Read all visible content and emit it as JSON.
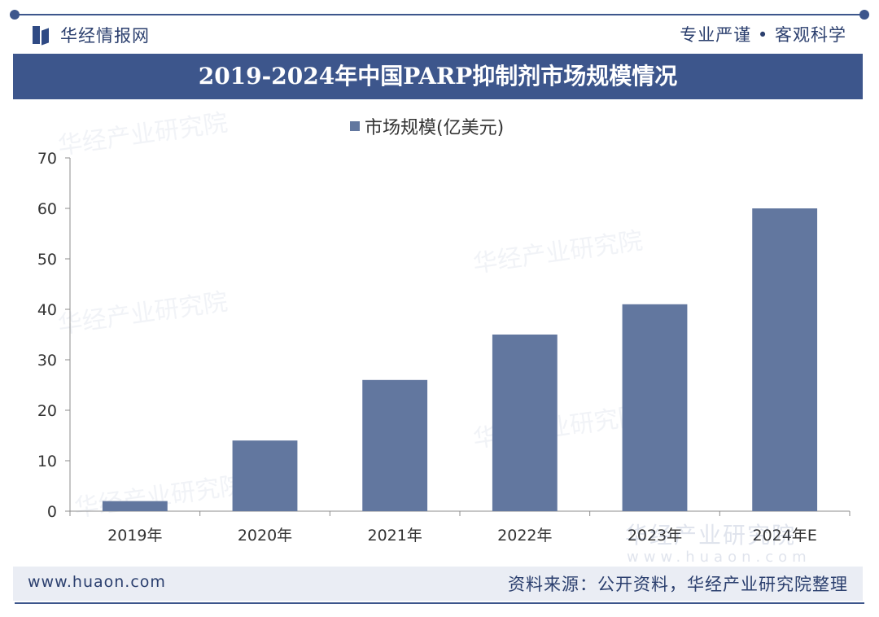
{
  "header": {
    "brand": "华经情报网",
    "slogan": "专业严谨 • 客观科学"
  },
  "watermark": {
    "text": "华经产业研究院",
    "url": "www.huaon.com"
  },
  "footer": {
    "url": "www.huaon.com",
    "source": "资料来源：公开资料，华经产业研究院整理"
  },
  "colors": {
    "accent": "#3d568c",
    "bar": "#62779f"
  },
  "chart_data": {
    "type": "bar",
    "title": "2019-2024年中国PARP抑制剂市场规模情况",
    "categories": [
      "2019年",
      "2020年",
      "2021年",
      "2022年",
      "2023年",
      "2024年E"
    ],
    "series": [
      {
        "name": "市场规模(亿美元)",
        "values": [
          2,
          14,
          26,
          35,
          41,
          60
        ]
      }
    ],
    "ylim": [
      0,
      70
    ],
    "yticks": [
      0,
      10,
      20,
      30,
      40,
      50,
      60,
      70
    ],
    "grid": false,
    "legend": "top-center"
  }
}
